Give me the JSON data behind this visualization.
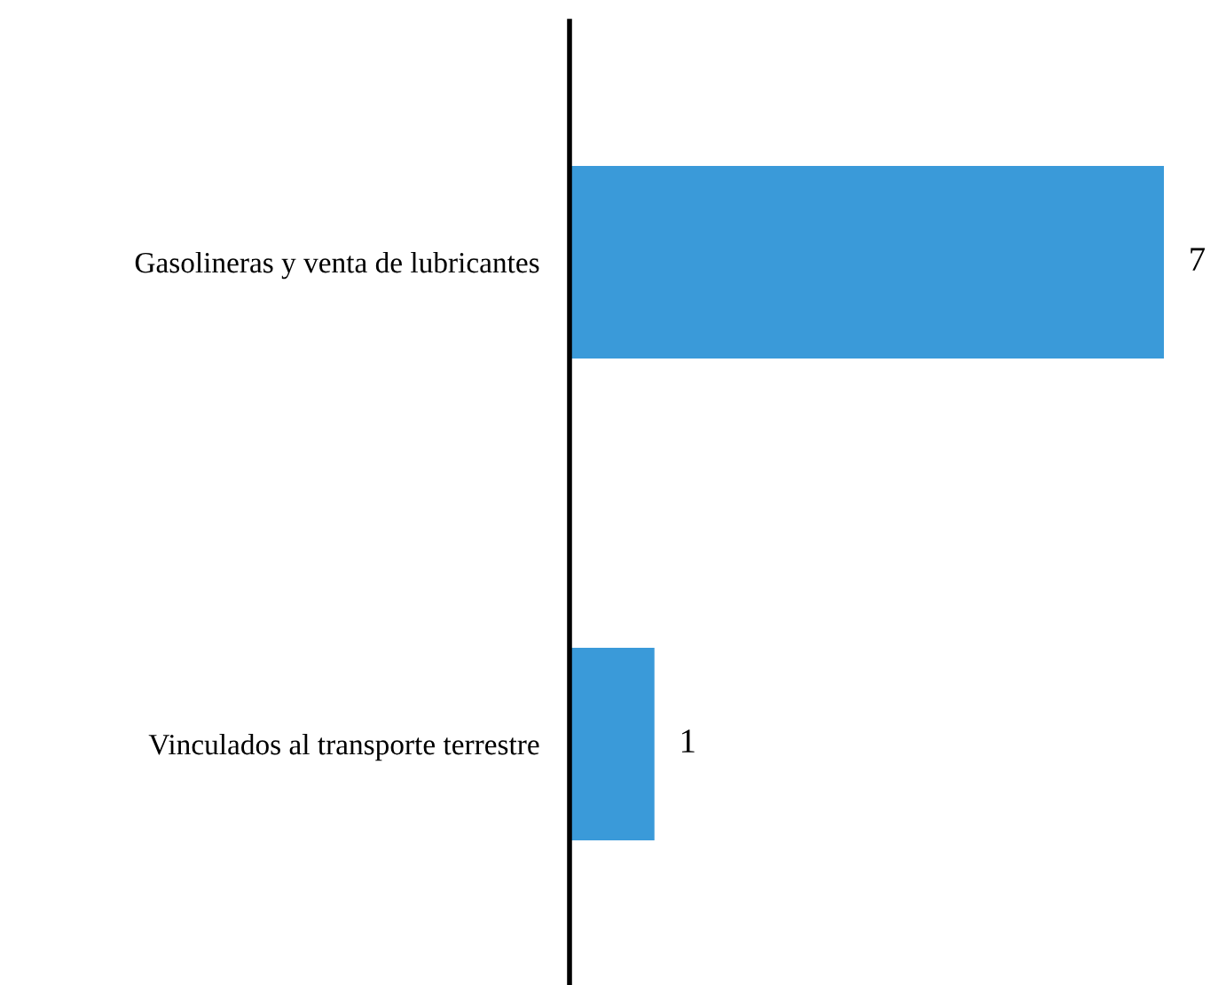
{
  "chart_data": {
    "type": "bar",
    "orientation": "horizontal",
    "categories": [
      "Gasolineras y venta de lubricantes",
      "Vinculados al transporte terrestre"
    ],
    "values": [
      7,
      1
    ],
    "color": "#3a9ad9",
    "data_labels": true,
    "tick_labels": "y",
    "grid": false,
    "legend": false
  }
}
